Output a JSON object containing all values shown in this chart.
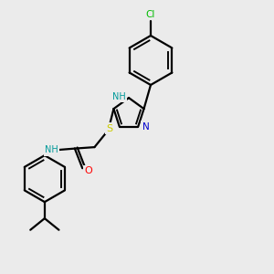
{
  "bg_color": "#ebebeb",
  "atom_colors": {
    "C": "#000000",
    "N": "#0000cc",
    "O": "#ff0000",
    "S": "#cccc00",
    "Cl": "#00bb00",
    "H": "#009999"
  },
  "bond_color": "#000000",
  "bond_width": 1.6
}
